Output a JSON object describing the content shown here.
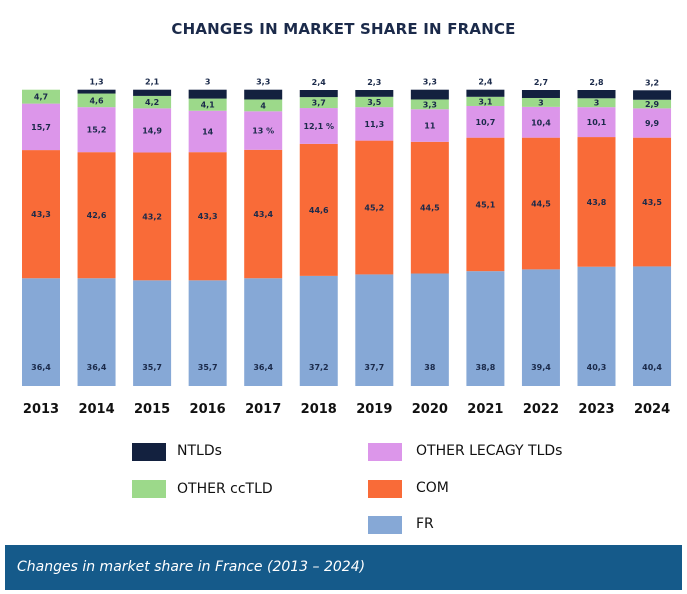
{
  "chart_data": {
    "type": "bar",
    "stacked": true,
    "title": "CHANGES IN MARKET SHARE IN FRANCE",
    "categories": [
      "2013",
      "2014",
      "2015",
      "2016",
      "2017",
      "2018",
      "2019",
      "2020",
      "2021",
      "2022",
      "2023",
      "2024"
    ],
    "ylim": [
      0,
      100
    ],
    "grid": false,
    "legend_placement": "bottom",
    "series": [
      {
        "name": "FR",
        "color": "#86a8d6",
        "values": [
          36.4,
          36.4,
          35.7,
          35.7,
          36.4,
          37.2,
          37.7,
          38,
          38.8,
          39.4,
          40.3,
          40.4
        ],
        "labels": [
          "36,4",
          "36,4",
          "35,7",
          "35,7",
          "36,4",
          "37,2",
          "37,7",
          "38",
          "38,8",
          "39,4",
          "40,3",
          "40,4"
        ]
      },
      {
        "name": "COM",
        "color": "#f96b38",
        "values": [
          43.3,
          42.6,
          43.2,
          43.3,
          43.4,
          44.6,
          45.2,
          44.5,
          45.1,
          44.5,
          43.8,
          43.5
        ],
        "labels": [
          "43,3",
          "42,6",
          "43,2",
          "43,3",
          "43,4",
          "44,6",
          "45,2",
          "44,5",
          "45,1",
          "44,5",
          "43,8",
          "43,5"
        ]
      },
      {
        "name": "OTHER LECAGY TLDs",
        "color": "#dc96ea",
        "values": [
          15.7,
          15.2,
          14.9,
          14,
          13,
          12.1,
          11.3,
          11,
          10.7,
          10.4,
          10.1,
          9.9
        ],
        "labels": [
          "15,7",
          "15,2",
          "14,9",
          "14",
          "13 %",
          "12,1 %",
          "11,3",
          "11",
          "10,7",
          "10,4",
          "10,1",
          "9,9"
        ]
      },
      {
        "name": "OTHER ccTLD",
        "color": "#9cd98a",
        "values": [
          4.7,
          4.6,
          4.2,
          4.1,
          4,
          3.7,
          3.5,
          3.3,
          3.1,
          3,
          3,
          2.9
        ],
        "labels": [
          "4,7",
          "4,6",
          "4,2",
          "4,1",
          "4",
          "3,7",
          "3,5",
          "3,3",
          "3,1",
          "3",
          "3",
          "2,9"
        ]
      },
      {
        "name": "NTLDs",
        "color": "#13213f",
        "values": [
          0,
          1.3,
          2.1,
          3,
          3.3,
          2.4,
          2.3,
          3.3,
          2.4,
          2.7,
          2.8,
          3.2
        ],
        "labels": [
          "",
          "1,3",
          "2,1",
          "3",
          "3,3",
          "2,4",
          "2,3",
          "3,3",
          "2,4",
          "2,7",
          "2,8",
          "3,2"
        ]
      }
    ]
  },
  "legend": [
    {
      "label": "NTLDs",
      "color": "#13213f"
    },
    {
      "label": "OTHER ccTLD",
      "color": "#9cd98a"
    },
    {
      "label": "OTHER LECAGY TLDs",
      "color": "#dc96ea"
    },
    {
      "label": "COM",
      "color": "#f96b38"
    },
    {
      "label": "FR",
      "color": "#86a8d6"
    }
  ],
  "caption": "Changes in market share in France (2013 – 2024)"
}
